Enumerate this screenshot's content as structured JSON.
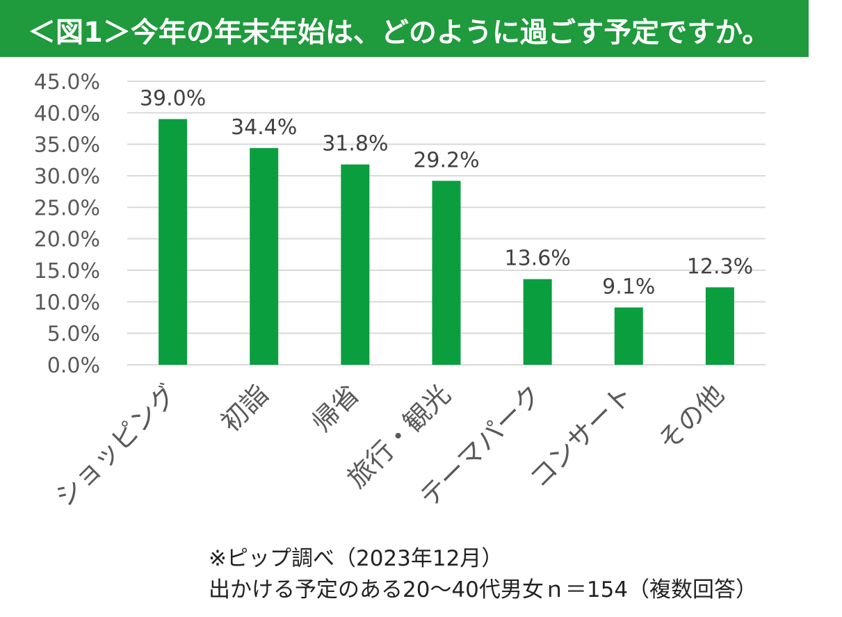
{
  "header": {
    "title": "＜図1＞今年の年末年始は、どのように過ごす予定ですか。"
  },
  "footnote": {
    "line1": "※ピップ調べ（2023年12月）",
    "line2": "出かける予定のある20～40代男女ｎ＝154（複数回答）"
  },
  "colors": {
    "header_background": "#1f9a3c",
    "bar": "#0b9e3f",
    "grid": "#d9d9d9",
    "axis_text": "#595959",
    "label_text": "#404040"
  },
  "chart_data": {
    "type": "bar",
    "categories": [
      "ショッピング",
      "初詣",
      "帰省",
      "旅行・観光",
      "テーマパーク",
      "コンサート",
      "その他"
    ],
    "values": [
      39.0,
      34.4,
      31.8,
      29.2,
      13.6,
      9.1,
      12.3
    ],
    "data_labels": [
      "39.0%",
      "34.4%",
      "31.8%",
      "29.2%",
      "13.6%",
      "9.1%",
      "12.3%"
    ],
    "y_ticks": [
      0,
      5,
      10,
      15,
      20,
      25,
      30,
      35,
      40,
      45
    ],
    "y_tick_labels": [
      "0.0%",
      "5.0%",
      "10.0%",
      "15.0%",
      "20.0%",
      "25.0%",
      "30.0%",
      "35.0%",
      "40.0%",
      "45.0%"
    ],
    "ylim": [
      0,
      45
    ],
    "title": "",
    "xlabel": "",
    "ylabel": "",
    "grid": true,
    "legend": "none"
  }
}
